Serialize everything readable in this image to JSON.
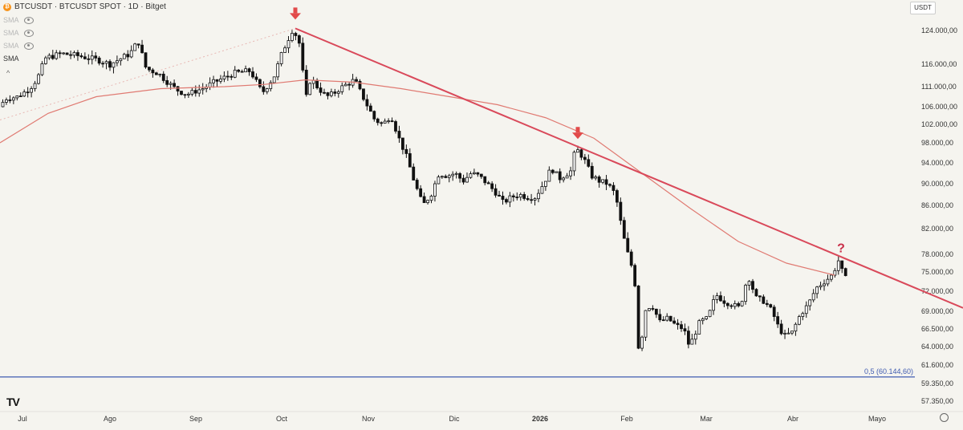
{
  "header": {
    "title": "BTCUSDT · BTCUSDT SPOT · 1D · Bitget",
    "coin_icon": "bitcoin-icon",
    "currency": "USDT"
  },
  "indicators": [
    {
      "label": "SMA",
      "visible": false
    },
    {
      "label": "SMA",
      "visible": false
    },
    {
      "label": "SMA",
      "visible": false
    },
    {
      "label": "SMA",
      "visible": true
    }
  ],
  "collapse_glyph": "^",
  "logo_text": "TV",
  "chart_data": {
    "type": "candlestick",
    "symbol": "BTCUSDT",
    "timeframe": "1D",
    "x_ticks": [
      "Jul",
      "Ago",
      "Sep",
      "Oct",
      "Nov",
      "Dic",
      "2026",
      "Feb",
      "Mar",
      "Abr",
      "Mayo"
    ],
    "y_ticks": [
      "124.000,00",
      "116.000,00",
      "111.000,00",
      "106.000,00",
      "102.000,00",
      "98.000,00",
      "94.000,00",
      "90.000,00",
      "86.000,00",
      "82.000,00",
      "78.000,00",
      "75.000,00",
      "72.000,00",
      "69.000,00",
      "66.500,00",
      "64.000,00",
      "61.600,00",
      "59.350,00",
      "57.350,00"
    ],
    "price_path": [
      [
        0,
        105500
      ],
      [
        10,
        108000
      ],
      [
        25,
        108500
      ],
      [
        40,
        110500
      ],
      [
        50,
        113000
      ],
      [
        60,
        117500
      ],
      [
        80,
        118500
      ],
      [
        100,
        118000
      ],
      [
        125,
        117000
      ],
      [
        140,
        116000
      ],
      [
        165,
        118500
      ],
      [
        175,
        121500
      ],
      [
        185,
        115000
      ],
      [
        200,
        114000
      ],
      [
        215,
        111500
      ],
      [
        225,
        110000
      ],
      [
        235,
        109000
      ],
      [
        255,
        110500
      ],
      [
        270,
        112000
      ],
      [
        295,
        114000
      ],
      [
        315,
        114500
      ],
      [
        330,
        109500
      ],
      [
        345,
        113500
      ],
      [
        355,
        119000
      ],
      [
        368,
        124500
      ],
      [
        378,
        120000
      ],
      [
        383,
        107000
      ],
      [
        390,
        113000
      ],
      [
        400,
        110500
      ],
      [
        410,
        108500
      ],
      [
        420,
        109500
      ],
      [
        430,
        111000
      ],
      [
        445,
        112500
      ],
      [
        460,
        106500
      ],
      [
        470,
        103000
      ],
      [
        480,
        102000
      ],
      [
        490,
        104000
      ],
      [
        500,
        99000
      ],
      [
        510,
        95000
      ],
      [
        520,
        90000
      ],
      [
        530,
        86000
      ],
      [
        540,
        88000
      ],
      [
        550,
        92000
      ],
      [
        560,
        91500
      ],
      [
        570,
        92000
      ],
      [
        580,
        90500
      ],
      [
        590,
        92000
      ],
      [
        600,
        91500
      ],
      [
        610,
        90000
      ],
      [
        620,
        88500
      ],
      [
        630,
        86500
      ],
      [
        640,
        87500
      ],
      [
        650,
        88000
      ],
      [
        660,
        87500
      ],
      [
        670,
        87500
      ],
      [
        680,
        90000
      ],
      [
        690,
        93000
      ],
      [
        700,
        91000
      ],
      [
        710,
        92000
      ],
      [
        715,
        92500
      ],
      [
        720,
        97000
      ],
      [
        730,
        95000
      ],
      [
        740,
        91500
      ],
      [
        750,
        90500
      ],
      [
        760,
        90000
      ],
      [
        770,
        88000
      ],
      [
        775,
        84000
      ],
      [
        782,
        79500
      ],
      [
        790,
        76000
      ],
      [
        795,
        72500
      ],
      [
        800,
        60500
      ],
      [
        805,
        69000
      ],
      [
        815,
        70000
      ],
      [
        825,
        67500
      ],
      [
        835,
        68000
      ],
      [
        845,
        67000
      ],
      [
        855,
        66500
      ],
      [
        862,
        64000
      ],
      [
        875,
        67500
      ],
      [
        885,
        68000
      ],
      [
        895,
        71500
      ],
      [
        905,
        70500
      ],
      [
        915,
        70000
      ],
      [
        925,
        69500
      ],
      [
        935,
        74500
      ],
      [
        945,
        71000
      ],
      [
        955,
        70500
      ],
      [
        965,
        69000
      ],
      [
        972,
        67000
      ],
      [
        980,
        65500
      ],
      [
        990,
        66000
      ],
      [
        1000,
        68500
      ],
      [
        1010,
        70000
      ],
      [
        1020,
        72500
      ],
      [
        1030,
        73500
      ],
      [
        1040,
        74500
      ],
      [
        1048,
        77000
      ],
      [
        1055,
        74000
      ]
    ],
    "sma_path": [
      [
        0,
        98000
      ],
      [
        60,
        104500
      ],
      [
        120,
        108500
      ],
      [
        200,
        110500
      ],
      [
        280,
        111000
      ],
      [
        330,
        111500
      ],
      [
        380,
        112500
      ],
      [
        440,
        112000
      ],
      [
        500,
        110500
      ],
      [
        560,
        108500
      ],
      [
        620,
        106500
      ],
      [
        680,
        103500
      ],
      [
        740,
        99000
      ],
      [
        800,
        92000
      ],
      [
        860,
        85500
      ],
      [
        920,
        80000
      ],
      [
        980,
        76500
      ],
      [
        1040,
        74500
      ]
    ],
    "trendline": {
      "start": [
        368,
        124500
      ],
      "end": [
        1200,
        69500
      ]
    },
    "support_level": 60144.6,
    "support_label": "0,5 (60.144,60)",
    "markers": [
      {
        "type": "arrow-down",
        "x": 368,
        "price": 124500
      },
      {
        "type": "arrow-down",
        "x": 720,
        "price": 97000
      },
      {
        "type": "question",
        "x": 1048,
        "price": 77000,
        "text": "?"
      }
    ],
    "colors": {
      "up": "#ffffff",
      "down": "#111111",
      "sma": "#e07a72",
      "trendline": "#d9495a",
      "support": "#3f5bb0",
      "grid_bg": "#f5f4ef"
    }
  }
}
